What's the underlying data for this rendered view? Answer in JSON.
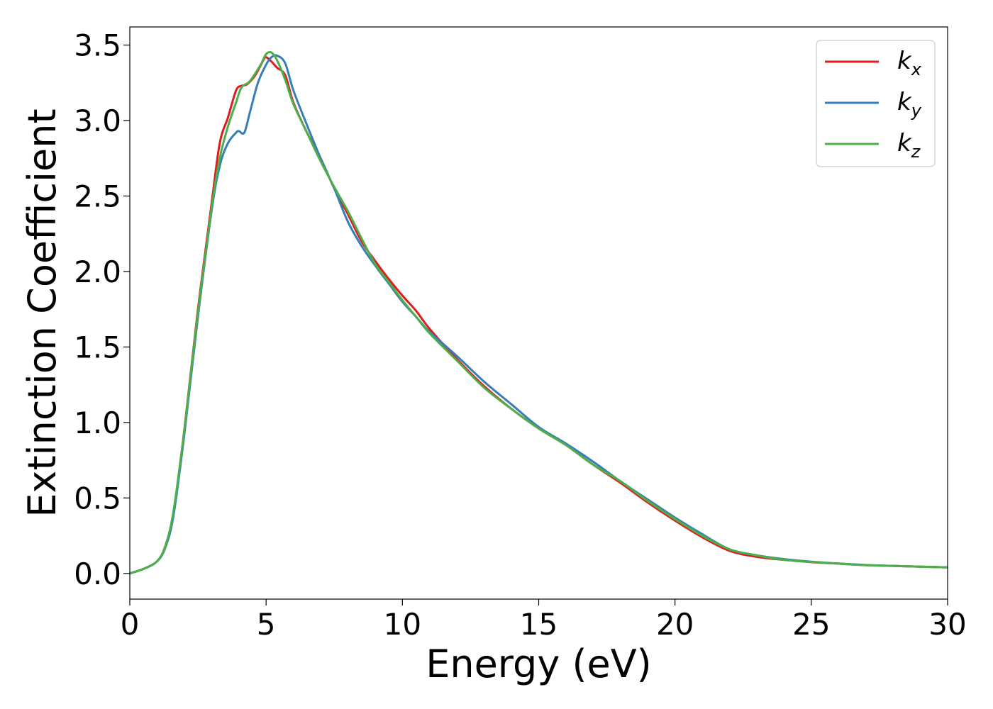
{
  "chart_data": {
    "type": "line",
    "title": "",
    "xlabel": "Energy (eV)",
    "ylabel": "Extinction Coefficient",
    "xlim": [
      0,
      30
    ],
    "ylim": [
      -0.17,
      3.62
    ],
    "xticks": [
      0,
      5,
      10,
      15,
      20,
      25,
      30
    ],
    "xtick_labels": [
      "0",
      "5",
      "10",
      "15",
      "20",
      "25",
      "30"
    ],
    "yticks": [
      0.0,
      0.5,
      1.0,
      1.5,
      2.0,
      2.5,
      3.0,
      3.5
    ],
    "ytick_labels": [
      "0.0",
      "0.5",
      "1.0",
      "1.5",
      "2.0",
      "2.5",
      "3.0",
      "3.5"
    ],
    "grid": false,
    "legend_position": "top-right",
    "series": [
      {
        "name": "k_x",
        "label_main": "k",
        "label_sub": "x",
        "color": "#e41a1c",
        "x": [
          0,
          0.5,
          1.0,
          1.3,
          1.6,
          2.0,
          2.5,
          3.0,
          3.3,
          3.6,
          3.9,
          4.1,
          4.3,
          4.6,
          4.9,
          5.0,
          5.2,
          5.4,
          5.7,
          6.0,
          6.5,
          7.0,
          7.5,
          8.0,
          8.5,
          9.0,
          9.5,
          10.0,
          10.5,
          11.0,
          12.0,
          13.0,
          14.0,
          15.0,
          16.0,
          17.0,
          18.0,
          19.0,
          20.0,
          21.0,
          22.0,
          23.0,
          24.0,
          25.0,
          26.0,
          27.0,
          28.0,
          29.0,
          30.0
        ],
        "y": [
          0.0,
          0.03,
          0.08,
          0.18,
          0.4,
          0.95,
          1.75,
          2.45,
          2.85,
          3.02,
          3.2,
          3.23,
          3.24,
          3.3,
          3.4,
          3.42,
          3.39,
          3.35,
          3.3,
          3.12,
          2.92,
          2.75,
          2.55,
          2.38,
          2.2,
          2.07,
          1.95,
          1.84,
          1.74,
          1.62,
          1.42,
          1.24,
          1.09,
          0.96,
          0.85,
          0.72,
          0.6,
          0.47,
          0.35,
          0.24,
          0.15,
          0.11,
          0.09,
          0.075,
          0.065,
          0.055,
          0.05,
          0.045,
          0.04
        ]
      },
      {
        "name": "k_y",
        "label_main": "k",
        "label_sub": "y",
        "color": "#377eb8",
        "x": [
          0,
          0.5,
          1.0,
          1.3,
          1.6,
          2.0,
          2.5,
          3.0,
          3.3,
          3.6,
          3.9,
          4.0,
          4.2,
          4.4,
          4.7,
          5.0,
          5.2,
          5.4,
          5.7,
          6.0,
          6.5,
          7.0,
          7.5,
          8.0,
          8.5,
          9.0,
          9.5,
          10.0,
          10.5,
          11.0,
          12.0,
          13.0,
          14.0,
          15.0,
          16.0,
          17.0,
          18.0,
          19.0,
          20.0,
          21.0,
          22.0,
          23.0,
          24.0,
          25.0,
          26.0,
          27.0,
          28.0,
          29.0,
          30.0
        ],
        "y": [
          0.0,
          0.03,
          0.08,
          0.17,
          0.38,
          0.92,
          1.7,
          2.4,
          2.7,
          2.85,
          2.92,
          2.93,
          2.92,
          3.05,
          3.25,
          3.37,
          3.42,
          3.43,
          3.38,
          3.2,
          2.97,
          2.75,
          2.55,
          2.33,
          2.17,
          2.04,
          1.92,
          1.8,
          1.7,
          1.6,
          1.44,
          1.27,
          1.12,
          0.97,
          0.86,
          0.74,
          0.61,
          0.49,
          0.37,
          0.26,
          0.16,
          0.12,
          0.095,
          0.078,
          0.066,
          0.056,
          0.05,
          0.045,
          0.04
        ]
      },
      {
        "name": "k_z",
        "label_main": "k",
        "label_sub": "z",
        "color": "#4daf4a",
        "x": [
          0,
          0.5,
          1.0,
          1.3,
          1.6,
          2.0,
          2.5,
          3.0,
          3.3,
          3.6,
          3.9,
          4.1,
          4.4,
          4.8,
          5.0,
          5.2,
          5.4,
          5.7,
          6.0,
          6.5,
          7.0,
          7.5,
          8.0,
          8.5,
          9.0,
          9.5,
          10.0,
          10.5,
          11.0,
          12.0,
          13.0,
          14.0,
          15.0,
          16.0,
          17.0,
          18.0,
          19.0,
          20.0,
          21.0,
          22.0,
          23.0,
          24.0,
          25.0,
          26.0,
          27.0,
          28.0,
          29.0,
          30.0
        ],
        "y": [
          0.0,
          0.03,
          0.08,
          0.18,
          0.41,
          0.95,
          1.73,
          2.42,
          2.75,
          2.96,
          3.12,
          3.22,
          3.26,
          3.37,
          3.44,
          3.45,
          3.4,
          3.27,
          3.11,
          2.92,
          2.73,
          2.56,
          2.4,
          2.22,
          2.05,
          1.93,
          1.81,
          1.7,
          1.59,
          1.41,
          1.23,
          1.09,
          0.96,
          0.85,
          0.72,
          0.61,
          0.48,
          0.36,
          0.25,
          0.16,
          0.12,
          0.09,
          0.076,
          0.065,
          0.055,
          0.05,
          0.045,
          0.04
        ]
      }
    ]
  }
}
